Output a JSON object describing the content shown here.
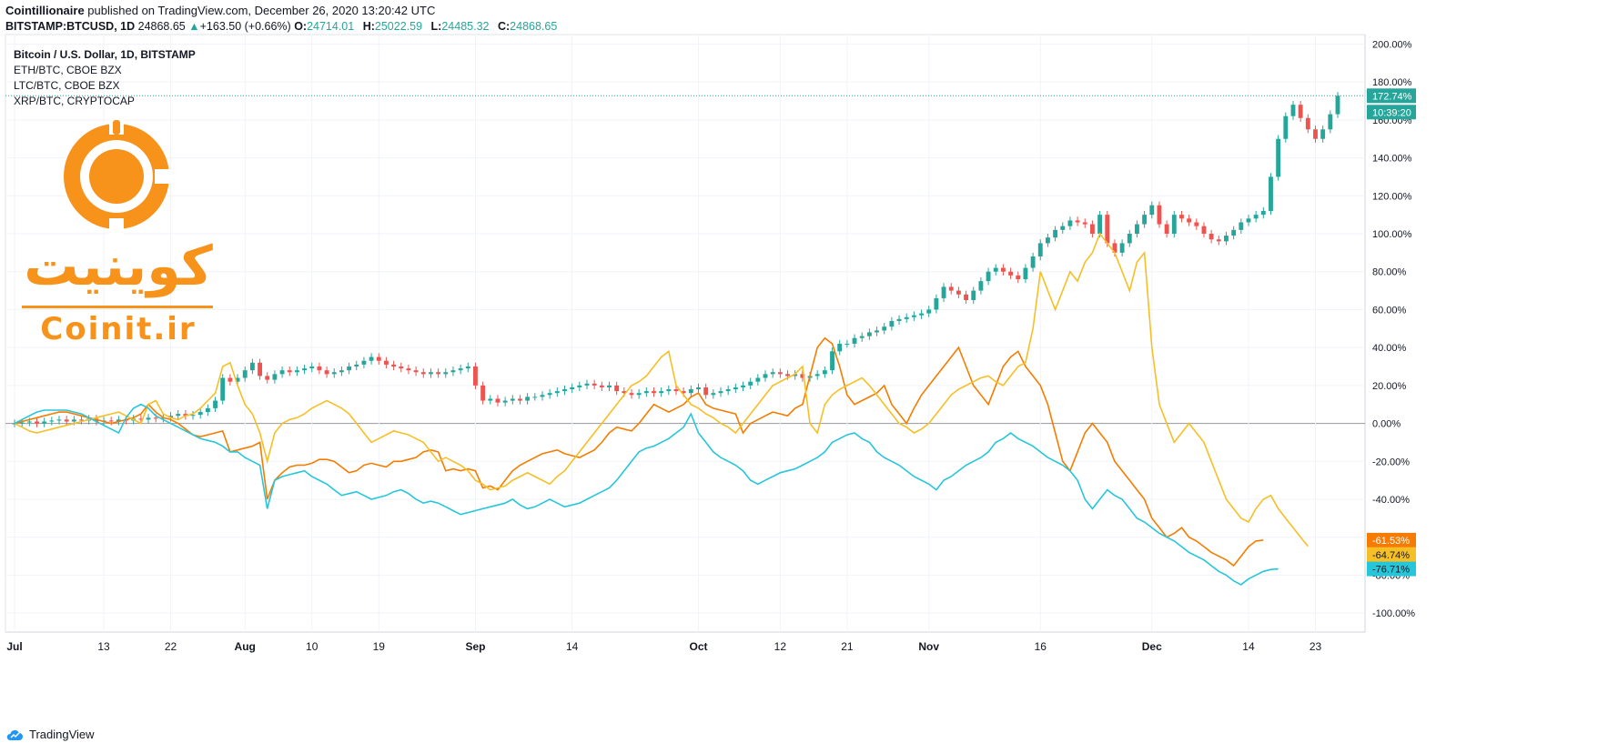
{
  "header": {
    "publisher": "Cointillionaire",
    "published_text": "published on TradingView.com, December 26, 2020 13:20:42 UTC",
    "symbol": "BITSTAMP:BTCUSD, 1D",
    "price": "24868.65",
    "change": "+163.50 (+0.66%)",
    "o_label": "O:",
    "o_value": "24714.01",
    "h_label": "H:",
    "h_value": "25022.59",
    "l_label": "L:",
    "l_value": "24485.32",
    "c_label": "C:",
    "c_value": "24868.65"
  },
  "legend": [
    "Bitcoin / U.S. Dollar, 1D, BITSTAMP",
    "ETH/BTC, CBOE BZX",
    "LTC/BTC, CBOE BZX",
    "XRP/BTC, CRYPTOCAP"
  ],
  "logo": {
    "fa": "کوینیت",
    "en": "Coinit.ir"
  },
  "footer": {
    "brand": "TradingView"
  },
  "colors": {
    "up": "#26a69a",
    "down": "#ef5350",
    "eth": "#f57c00",
    "ltc": "#f6bf26",
    "xrp": "#26c6da",
    "grid": "#f0f3fa",
    "logo": "#f7931a"
  },
  "chart_data": {
    "type": "line",
    "y_unit": "%",
    "ylim": [
      -110,
      205
    ],
    "y_ticks": [
      "200.00%",
      "180.00%",
      "160.00%",
      "140.00%",
      "120.00%",
      "100.00%",
      "80.00%",
      "60.00%",
      "40.00%",
      "20.00%",
      "0.00%",
      "-20.00%",
      "-40.00%",
      "-60.00%",
      "-80.00%",
      "-100.00%"
    ],
    "y_tick_values": [
      200,
      180,
      160,
      140,
      120,
      100,
      80,
      60,
      40,
      20,
      0,
      -20,
      -40,
      -60,
      -80,
      -100
    ],
    "x_ticks": [
      {
        "label": "Jul",
        "day": 0
      },
      {
        "label": "13",
        "day": 12
      },
      {
        "label": "22",
        "day": 21
      },
      {
        "label": "Aug",
        "day": 31
      },
      {
        "label": "10",
        "day": 40
      },
      {
        "label": "19",
        "day": 49
      },
      {
        "label": "Sep",
        "day": 62
      },
      {
        "label": "14",
        "day": 75
      },
      {
        "label": "Oct",
        "day": 92
      },
      {
        "label": "12",
        "day": 103
      },
      {
        "label": "21",
        "day": 112
      },
      {
        "label": "Nov",
        "day": 123
      },
      {
        "label": "16",
        "day": 138
      },
      {
        "label": "Dec",
        "day": 153
      },
      {
        "label": "14",
        "day": 166
      },
      {
        "label": "23",
        "day": 175
      }
    ],
    "grid": true,
    "last_value_labels": [
      {
        "series": "BTCUSD",
        "text": "172.74%"
      },
      {
        "series": "BTCUSD",
        "text": "10:39:20"
      },
      {
        "series": "ETH/BTC",
        "text": "-61.53%"
      },
      {
        "series": "LTC/BTC",
        "text": "-64.74%"
      },
      {
        "series": "XRP/BTC",
        "text": "-76.71%"
      }
    ],
    "candles": {
      "name": "Bitcoin / U.S. Dollar, 1D, BITSTAMP",
      "close": [
        0,
        0.5,
        1,
        0,
        1,
        1.5,
        2,
        1,
        2,
        1.5,
        2.5,
        1,
        1.5,
        1,
        2,
        1.5,
        2.5,
        2,
        3,
        2.5,
        3,
        4,
        5,
        4,
        4.5,
        6,
        8,
        12,
        24,
        22,
        24,
        28,
        32,
        25,
        23,
        26,
        28,
        27,
        28,
        29,
        30,
        28,
        26,
        27,
        28,
        30,
        31,
        33,
        35,
        33,
        31,
        30,
        29,
        28,
        27,
        26,
        27,
        26,
        27,
        28,
        29,
        30,
        20,
        12,
        13,
        11,
        12,
        13,
        12,
        14,
        14,
        15,
        16,
        17,
        18,
        19,
        20,
        21,
        20,
        19,
        20,
        17,
        16,
        15,
        16,
        17,
        16,
        17,
        18,
        17,
        16,
        18,
        19,
        15,
        16,
        17,
        18,
        19,
        20,
        22,
        24,
        26,
        27,
        26,
        25,
        26,
        24,
        25,
        26,
        28,
        38,
        42,
        42,
        45,
        46,
        48,
        49,
        51,
        54,
        55,
        56,
        57,
        58,
        60,
        66,
        72,
        70,
        68,
        65,
        70,
        75,
        80,
        82,
        80,
        78,
        76,
        82,
        88,
        95,
        98,
        102,
        104,
        107,
        106,
        105,
        100,
        110,
        95,
        90,
        95,
        100,
        105,
        110,
        115,
        105,
        100,
        110,
        108,
        106,
        104,
        100,
        97,
        96,
        99,
        102,
        106,
        108,
        110,
        112,
        130,
        150,
        162,
        168,
        161,
        155,
        150,
        155,
        163,
        172.74
      ]
    },
    "series": [
      {
        "name": "ETH/BTC, CBOE BZX",
        "values": [
          0,
          1,
          2,
          3,
          4,
          5,
          6,
          6,
          5,
          4,
          3,
          2,
          1,
          0,
          1,
          2,
          3,
          5,
          10,
          6,
          3,
          2,
          0,
          -3,
          -6,
          -7,
          -6,
          -5,
          -4,
          -15,
          -14,
          -13,
          -12,
          -10,
          -40,
          -30,
          -26,
          -23,
          -22,
          -22,
          -21,
          -19,
          -19,
          -20,
          -23,
          -26,
          -25,
          -22,
          -21,
          -22,
          -23,
          -20,
          -20,
          -19,
          -18,
          -15,
          -14,
          -15,
          -25,
          -24,
          -25,
          -24,
          -25,
          -34,
          -33,
          -35,
          -30,
          -25,
          -22,
          -20,
          -18,
          -16,
          -15,
          -14,
          -16,
          -17,
          -18,
          -16,
          -14,
          -10,
          -5,
          -2,
          -3,
          -4,
          0,
          5,
          10,
          8,
          6,
          8,
          10,
          14,
          16,
          10,
          8,
          7,
          6,
          5,
          -5,
          0,
          2,
          4,
          6,
          5,
          4,
          8,
          10,
          25,
          40,
          45,
          42,
          30,
          15,
          10,
          12,
          14,
          16,
          20,
          10,
          5,
          0,
          8,
          15,
          20,
          25,
          30,
          35,
          40,
          30,
          20,
          15,
          10,
          20,
          30,
          35,
          38,
          30,
          25,
          20,
          10,
          -5,
          -20,
          -25,
          -15,
          -5,
          0,
          -5,
          -10,
          -20,
          -25,
          -30,
          -35,
          -40,
          -50,
          -55,
          -60,
          -58,
          -55,
          -60,
          -62,
          -65,
          -68,
          -70,
          -72,
          -75,
          -70,
          -65,
          -62,
          -61.53
        ]
      },
      {
        "name": "LTC/BTC, CBOE BZX",
        "values": [
          0,
          -2,
          -4,
          -5,
          -4,
          -3,
          -2,
          -1,
          0,
          1,
          2,
          3,
          4,
          5,
          6,
          4,
          2,
          0,
          10,
          12,
          5,
          3,
          2,
          4,
          5,
          8,
          12,
          16,
          30,
          32,
          20,
          10,
          5,
          -5,
          -20,
          -5,
          0,
          2,
          3,
          5,
          8,
          10,
          12,
          10,
          8,
          5,
          0,
          -5,
          -10,
          -8,
          -6,
          -4,
          -5,
          -6,
          -8,
          -10,
          -15,
          -20,
          -18,
          -20,
          -22,
          -25,
          -30,
          -32,
          -35,
          -34,
          -33,
          -30,
          -28,
          -26,
          -28,
          -30,
          -32,
          -28,
          -25,
          -20,
          -15,
          -10,
          -5,
          0,
          5,
          10,
          15,
          20,
          22,
          25,
          30,
          35,
          38,
          20,
          15,
          10,
          8,
          5,
          3,
          0,
          -2,
          -5,
          0,
          5,
          10,
          15,
          20,
          22,
          24,
          26,
          30,
          0,
          -5,
          10,
          15,
          18,
          20,
          22,
          24,
          20,
          15,
          10,
          5,
          0,
          -2,
          -5,
          -3,
          0,
          5,
          10,
          15,
          18,
          20,
          22,
          24,
          25,
          22,
          20,
          25,
          30,
          32,
          50,
          80,
          70,
          60,
          70,
          80,
          75,
          85,
          90,
          100,
          95,
          90,
          80,
          70,
          85,
          90,
          40,
          10,
          0,
          -10,
          -5,
          0,
          -5,
          -10,
          -20,
          -30,
          -40,
          -45,
          -50,
          -52,
          -45,
          -40,
          -38,
          -45,
          -50,
          -55,
          -60,
          -64.74
        ]
      },
      {
        "name": "XRP/BTC, CRYPTOCAP",
        "values": [
          0,
          2,
          4,
          6,
          7,
          7,
          7,
          7,
          6,
          5,
          3,
          1,
          -1,
          -3,
          -5,
          3,
          8,
          10,
          8,
          4,
          2,
          0,
          -2,
          -4,
          -6,
          -8,
          -9,
          -10,
          -12,
          -15,
          -15,
          -18,
          -20,
          -22,
          -45,
          -30,
          -28,
          -27,
          -26,
          -25,
          -28,
          -30,
          -32,
          -35,
          -38,
          -37,
          -36,
          -38,
          -40,
          -39,
          -38,
          -36,
          -35,
          -37,
          -40,
          -42,
          -41,
          -42,
          -44,
          -46,
          -48,
          -47,
          -46,
          -45,
          -44,
          -43,
          -42,
          -40,
          -43,
          -45,
          -44,
          -42,
          -40,
          -42,
          -44,
          -43,
          -42,
          -40,
          -38,
          -36,
          -34,
          -30,
          -25,
          -20,
          -15,
          -13,
          -12,
          -10,
          -8,
          -5,
          -2,
          5,
          -5,
          -10,
          -15,
          -18,
          -20,
          -22,
          -25,
          -30,
          -32,
          -30,
          -28,
          -26,
          -25,
          -24,
          -22,
          -20,
          -18,
          -15,
          -10,
          -8,
          -6,
          -5,
          -8,
          -10,
          -15,
          -18,
          -20,
          -22,
          -25,
          -28,
          -30,
          -32,
          -35,
          -30,
          -28,
          -25,
          -22,
          -20,
          -18,
          -15,
          -10,
          -8,
          -5,
          -8,
          -10,
          -12,
          -15,
          -18,
          -20,
          -22,
          -25,
          -30,
          -40,
          -45,
          -40,
          -35,
          -38,
          -40,
          -45,
          -50,
          -52,
          -55,
          -58,
          -60,
          -62,
          -65,
          -68,
          -70,
          -72,
          -75,
          -78,
          -80,
          -83,
          -85,
          -82,
          -80,
          -78,
          -77,
          -76.71
        ]
      }
    ]
  }
}
